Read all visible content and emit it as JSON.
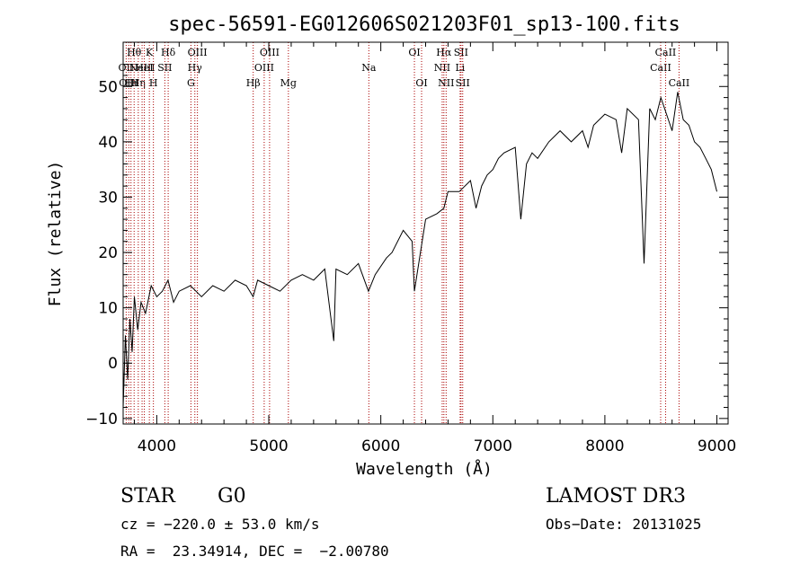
{
  "chart_data": {
    "type": "line",
    "title": "spec-56591-EG012606S021203F01_sp13-100.fits",
    "xlabel": "Wavelength (Å)",
    "ylabel": "Flux (relative)",
    "xlim": [
      3700,
      9100
    ],
    "ylim": [
      -11,
      58
    ],
    "xticks": [
      "4000",
      "5000",
      "6000",
      "7000",
      "8000",
      "9000"
    ],
    "yticks": [
      "-10",
      "0",
      "10",
      "20",
      "30",
      "40",
      "50"
    ],
    "grid": false,
    "line_color": "#000000",
    "marker_color": "#aa0000",
    "series": [
      {
        "x": [
          3700,
          3720,
          3740,
          3760,
          3780,
          3800,
          3830,
          3860,
          3900,
          3950,
          4000,
          4050,
          4100,
          4150,
          4200,
          4300,
          4400,
          4500,
          4600,
          4700,
          4800,
          4860,
          4900,
          5000,
          5100,
          5200,
          5300,
          5400,
          5500,
          5580,
          5600,
          5700,
          5800,
          5890,
          5950,
          6050,
          6100,
          6200,
          6280,
          6300,
          6400,
          6500,
          6563,
          6600,
          6700,
          6800,
          6850,
          6900,
          6950,
          7000,
          7050,
          7100,
          7200,
          7250,
          7300,
          7350,
          7400,
          7500,
          7600,
          7700,
          7800,
          7850,
          7900,
          8000,
          8100,
          8150,
          8200,
          8300,
          8350,
          8400,
          8450,
          8500,
          8550,
          8600,
          8650,
          8700,
          8750,
          8800,
          8850,
          8900,
          8950,
          9000
        ],
        "y": [
          -8,
          5,
          -3,
          8,
          2,
          12,
          6,
          11,
          9,
          14,
          12,
          13,
          15,
          11,
          13,
          14,
          12,
          14,
          13,
          15,
          14,
          12,
          15,
          14,
          13,
          15,
          16,
          15,
          17,
          4,
          17,
          16,
          18,
          13,
          16,
          19,
          20,
          24,
          22,
          13,
          26,
          27,
          28,
          31,
          31,
          33,
          28,
          32,
          34,
          35,
          37,
          38,
          39,
          26,
          36,
          38,
          37,
          40,
          42,
          40,
          42,
          39,
          43,
          45,
          44,
          38,
          46,
          44,
          18,
          46,
          44,
          48,
          45,
          42,
          49,
          44,
          43,
          40,
          39,
          37,
          35,
          31
        ]
      }
    ],
    "lines": [
      {
        "x": 3727,
        "label": "OII",
        "row": 2
      },
      {
        "x": 3750,
        "label": "OIII",
        "row": 3
      },
      {
        "x": 3770,
        "label": "Hι",
        "row": 3
      },
      {
        "x": 3798,
        "label": "Hθ",
        "row": 1
      },
      {
        "x": 3835,
        "label": "Hη",
        "row": 3
      },
      {
        "x": 3869,
        "label": "NeIII",
        "row": 2
      },
      {
        "x": 3889,
        "label": "HeI",
        "row": 2
      },
      {
        "x": 3934,
        "label": "K",
        "row": 1
      },
      {
        "x": 3970,
        "label": "H",
        "row": 3
      },
      {
        "x": 4072,
        "label": "SII",
        "row": 2
      },
      {
        "x": 4102,
        "label": "Hδ",
        "row": 1
      },
      {
        "x": 4305,
        "label": "G",
        "row": 3
      },
      {
        "x": 4340,
        "label": "Hγ",
        "row": 2
      },
      {
        "x": 4363,
        "label": "OIII",
        "row": 1
      },
      {
        "x": 4861,
        "label": "Hβ",
        "row": 3
      },
      {
        "x": 4959,
        "label": "OIII",
        "row": 2
      },
      {
        "x": 5007,
        "label": "OIII",
        "row": 1
      },
      {
        "x": 5175,
        "label": "Mg",
        "row": 3
      },
      {
        "x": 5893,
        "label": "Na",
        "row": 2
      },
      {
        "x": 6300,
        "label": "OI",
        "row": 1
      },
      {
        "x": 6364,
        "label": "OI",
        "row": 3
      },
      {
        "x": 6548,
        "label": "NII",
        "row": 2
      },
      {
        "x": 6563,
        "label": "Hα",
        "row": 1
      },
      {
        "x": 6583,
        "label": "NII",
        "row": 3
      },
      {
        "x": 6708,
        "label": "Li",
        "row": 2
      },
      {
        "x": 6716,
        "label": "SII",
        "row": 1
      },
      {
        "x": 6731,
        "label": "SII",
        "row": 3
      },
      {
        "x": 8498,
        "label": "CaII",
        "row": 2
      },
      {
        "x": 8542,
        "label": "CaII",
        "row": 1
      },
      {
        "x": 8662,
        "label": "CaII",
        "row": 3
      }
    ]
  },
  "info": {
    "object_class": "STAR",
    "subclass": "G0",
    "survey": "LAMOST DR3",
    "cz": "cz = −220.0 ± 53.0 km/s",
    "obs_date": "Obs−Date: 20131025",
    "coords": "RA =  23.34914, DEC =  −2.00780"
  }
}
